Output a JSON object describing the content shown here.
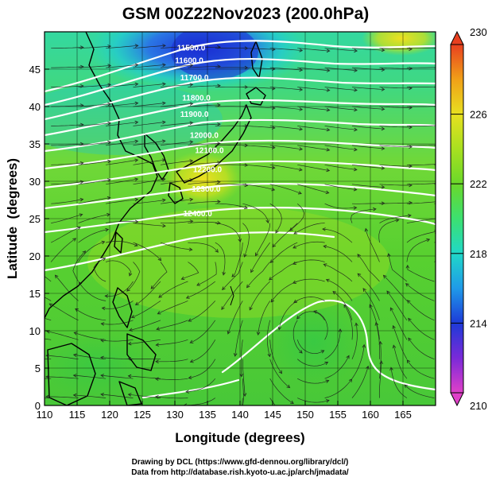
{
  "chart_data": {
    "type": "heatmap",
    "title": "GSM 00Z22Nov2023 (200.0hPa)",
    "xlabel": "Longitude (degrees)",
    "ylabel": "Latitude  (degrees)",
    "xlim": [
      110,
      170
    ],
    "ylim": [
      0,
      50
    ],
    "x_ticks": [
      "110",
      "115",
      "120",
      "125",
      "130",
      "135",
      "140",
      "145",
      "150",
      "155",
      "160",
      "165"
    ],
    "y_ticks": [
      "0",
      "5",
      "10",
      "15",
      "20",
      "25",
      "30",
      "35",
      "40",
      "45"
    ],
    "colorbar": {
      "min": 210,
      "max": 230,
      "ticks": [
        "210",
        "214",
        "218",
        "222",
        "226",
        "230"
      ],
      "colors": [
        "#e040c8",
        "#7a2ad8",
        "#1d3ad8",
        "#1f9ae8",
        "#20d8c8",
        "#3ce070",
        "#6ad82a",
        "#a8e020",
        "#e8e020",
        "#f0a018",
        "#e84020"
      ]
    },
    "contour_labels": [
      "11500.0",
      "11600.0",
      "11700.0",
      "11800.0",
      "11900.0",
      "12000.0",
      "12100.0",
      "12200.0",
      "12300.0",
      "12400.0"
    ],
    "contour_label_positions": [
      {
        "text": "11500.0",
        "lon": 132.5,
        "lat": 47.5
      },
      {
        "text": "11600.0",
        "lon": 132.2,
        "lat": 45.8
      },
      {
        "text": "11700.0",
        "lon": 133.0,
        "lat": 43.5
      },
      {
        "text": "11800.0",
        "lon": 133.3,
        "lat": 40.8
      },
      {
        "text": "11900.0",
        "lon": 133.0,
        "lat": 38.6
      },
      {
        "text": "12000.0",
        "lon": 134.5,
        "lat": 35.8
      },
      {
        "text": "12100.0",
        "lon": 135.3,
        "lat": 33.8
      },
      {
        "text": "12200.0",
        "lon": 135.0,
        "lat": 31.2
      },
      {
        "text": "12300.0",
        "lon": 134.8,
        "lat": 28.6
      },
      {
        "text": "12400.0",
        "lon": 133.5,
        "lat": 25.3
      }
    ],
    "grid": true
  },
  "credits": {
    "line1": "Drawing by DCL (https://www.gfd-dennou.org/library/dcl/)",
    "line2": "Data from http://database.rish.kyoto-u.ac.jp/arch/jmadata/"
  }
}
